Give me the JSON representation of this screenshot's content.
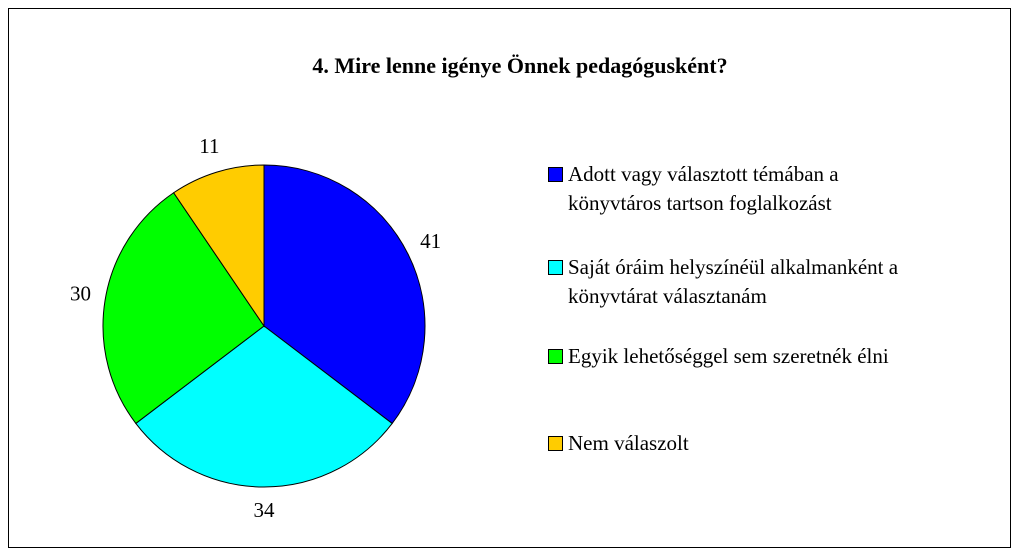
{
  "chart_data": {
    "type": "pie",
    "title": "4. Mire lenne igénye Önnek pedagógusként?",
    "categories": [
      "Adott vagy választott témában a könyvtáros tartson foglalkozást",
      "Saját óráim helyszínéül alkalmanként a könyvtárat választanám",
      "Egyik lehetőséggel sem szeretnék élni",
      "Nem válaszolt"
    ],
    "values": [
      41,
      34,
      30,
      11
    ],
    "colors": [
      "#0000ff",
      "#00ffff",
      "#00ff00",
      "#ffcc00"
    ],
    "legend": "right"
  }
}
